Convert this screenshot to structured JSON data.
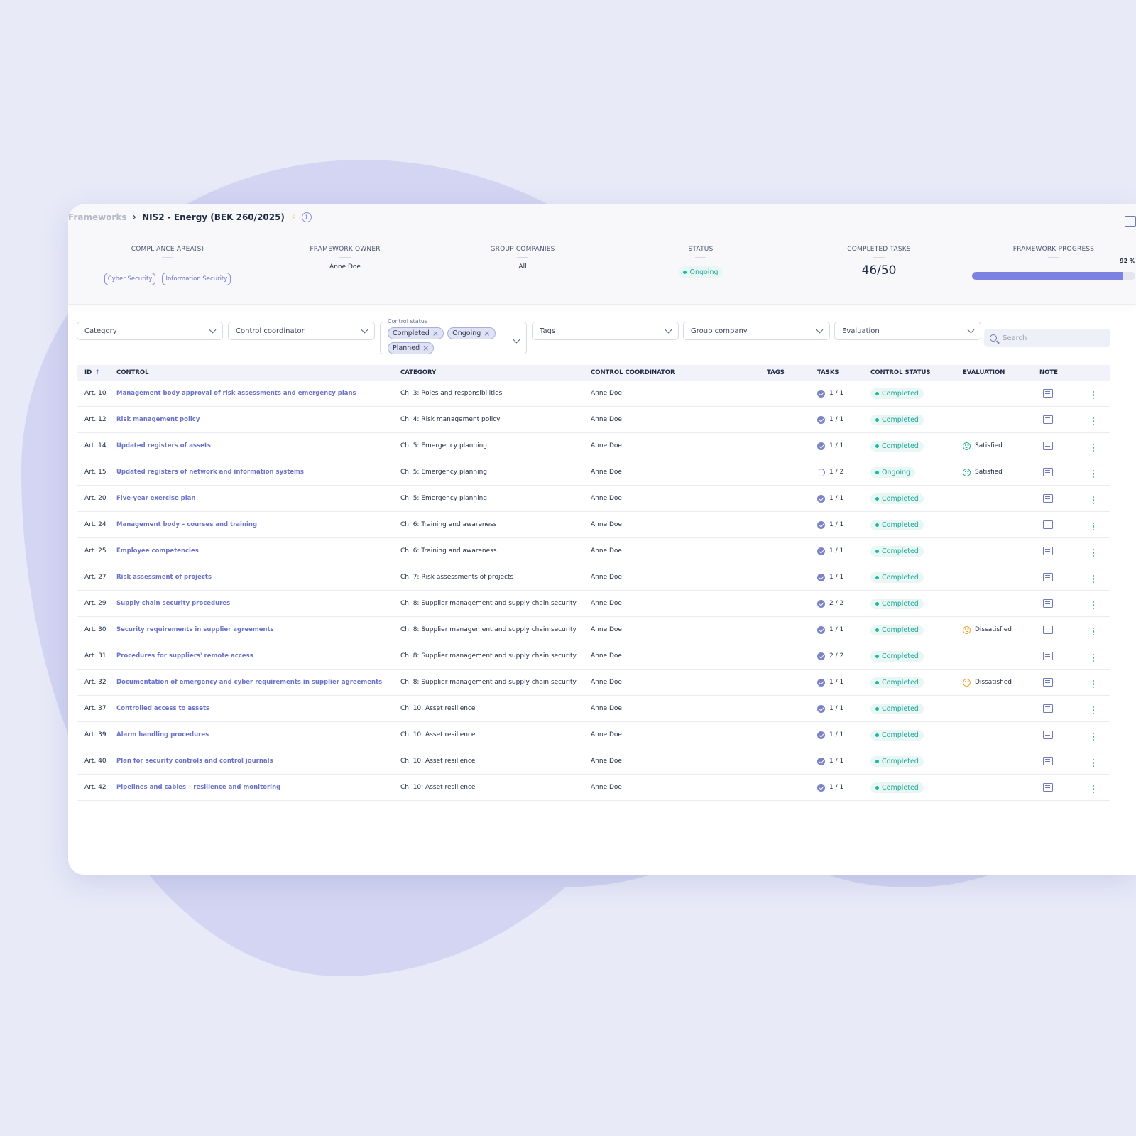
{
  "breadcrumb": {
    "root": "Frameworks",
    "separator": "›",
    "title": "NIS2 - Energy (BEK 260/2025)",
    "bolt": "⚡",
    "info": "i"
  },
  "summary": {
    "compliance_areas": {
      "label": "COMPLIANCE AREA(S)",
      "chips": [
        "Cyber Security",
        "Information Security"
      ]
    },
    "framework_owner": {
      "label": "FRAMEWORK OWNER",
      "value": "Anne Doe"
    },
    "group_companies": {
      "label": "GROUP COMPANIES",
      "value": "All"
    },
    "status": {
      "label": "STATUS",
      "value": "Ongoing"
    },
    "completed_tasks": {
      "label": "COMPLETED TASKS",
      "value": "46/50"
    },
    "framework_progress": {
      "label": "FRAMEWORK PROGRESS",
      "value": "92 %",
      "fraction": 0.92
    }
  },
  "filters": {
    "category": "Category",
    "coordinator": "Control coordinator",
    "control_status": {
      "legend": "Control status",
      "chips": [
        "Completed",
        "Ongoing",
        "Planned"
      ],
      "remove": "×"
    },
    "tags": "Tags",
    "group_company": "Group company",
    "evaluation": "Evaluation",
    "search_placeholder": "Search"
  },
  "table": {
    "headers": {
      "id": "ID",
      "sort": "↑",
      "control": "CONTROL",
      "category": "CATEGORY",
      "coordinator": "CONTROL COORDINATOR",
      "tags": "TAGS",
      "tasks": "TASKS",
      "status": "CONTROL STATUS",
      "evaluation": "EVALUATION",
      "note": "NOTE"
    },
    "rows": [
      {
        "id": "Art. 10",
        "control": "Management body approval of risk assessments and emergency plans",
        "category": "Ch. 3: Roles and responsibilities",
        "coordinator": "Anne Doe",
        "tasks": "1 / 1",
        "task_state": "done",
        "status": "Completed",
        "evaluation": ""
      },
      {
        "id": "Art. 12",
        "control": "Risk management policy",
        "category": "Ch. 4: Risk management policy",
        "coordinator": "Anne Doe",
        "tasks": "1 / 1",
        "task_state": "done",
        "status": "Completed",
        "evaluation": ""
      },
      {
        "id": "Art. 14",
        "control": "Updated registers of assets",
        "category": "Ch. 5: Emergency planning",
        "coordinator": "Anne Doe",
        "tasks": "1 / 1",
        "task_state": "done",
        "status": "Completed",
        "evaluation": "Satisfied"
      },
      {
        "id": "Art. 15",
        "control": "Updated registers of network and information systems",
        "category": "Ch. 5: Emergency planning",
        "coordinator": "Anne Doe",
        "tasks": "1 / 2",
        "task_state": "partial",
        "status": "Ongoing",
        "evaluation": "Satisfied"
      },
      {
        "id": "Art. 20",
        "control": "Five-year exercise plan",
        "category": "Ch. 5: Emergency planning",
        "coordinator": "Anne Doe",
        "tasks": "1 / 1",
        "task_state": "done",
        "status": "Completed",
        "evaluation": ""
      },
      {
        "id": "Art. 24",
        "control": "Management body – courses and training",
        "category": "Ch. 6: Training and awareness",
        "coordinator": "Anne Doe",
        "tasks": "1 / 1",
        "task_state": "done",
        "status": "Completed",
        "evaluation": ""
      },
      {
        "id": "Art. 25",
        "control": "Employee competencies",
        "category": "Ch. 6: Training and awareness",
        "coordinator": "Anne Doe",
        "tasks": "1 / 1",
        "task_state": "done",
        "status": "Completed",
        "evaluation": ""
      },
      {
        "id": "Art. 27",
        "control": "Risk assessment of projects",
        "category": "Ch. 7: Risk assessments of projects",
        "coordinator": "Anne Doe",
        "tasks": "1 / 1",
        "task_state": "done",
        "status": "Completed",
        "evaluation": ""
      },
      {
        "id": "Art. 29",
        "control": "Supply chain security procedures",
        "category": "Ch. 8: Supplier management and supply chain security",
        "coordinator": "Anne Doe",
        "tasks": "2 / 2",
        "task_state": "done",
        "status": "Completed",
        "evaluation": ""
      },
      {
        "id": "Art. 30",
        "control": "Security requirements in supplier agreements",
        "category": "Ch. 8: Supplier management and supply chain security",
        "coordinator": "Anne Doe",
        "tasks": "1 / 1",
        "task_state": "done",
        "status": "Completed",
        "evaluation": "Dissatisfied"
      },
      {
        "id": "Art. 31",
        "control": "Procedures for suppliers' remote access",
        "category": "Ch. 8: Supplier management and supply chain security",
        "coordinator": "Anne Doe",
        "tasks": "2 / 2",
        "task_state": "done",
        "status": "Completed",
        "evaluation": ""
      },
      {
        "id": "Art. 32",
        "control": "Documentation of emergency and cyber requirements in supplier agreements",
        "category": "Ch. 8: Supplier management and supply chain security",
        "coordinator": "Anne Doe",
        "tasks": "1 / 1",
        "task_state": "done",
        "status": "Completed",
        "evaluation": "Dissatisfied"
      },
      {
        "id": "Art. 37",
        "control": "Controlled access to assets",
        "category": "Ch. 10: Asset resilience",
        "coordinator": "Anne Doe",
        "tasks": "1 / 1",
        "task_state": "done",
        "status": "Completed",
        "evaluation": ""
      },
      {
        "id": "Art. 39",
        "control": "Alarm handling procedures",
        "category": "Ch. 10: Asset resilience",
        "coordinator": "Anne Doe",
        "tasks": "1 / 1",
        "task_state": "done",
        "status": "Completed",
        "evaluation": ""
      },
      {
        "id": "Art. 40",
        "control": "Plan for security controls and control journals",
        "category": "Ch. 10: Asset resilience",
        "coordinator": "Anne Doe",
        "tasks": "1 / 1",
        "task_state": "done",
        "status": "Completed",
        "evaluation": ""
      },
      {
        "id": "Art. 42",
        "control": "Pipelines and cables – resilience and monitoring",
        "category": "Ch. 10: Asset resilience",
        "coordinator": "Anne Doe",
        "tasks": "1 / 1",
        "task_state": "done",
        "status": "Completed",
        "evaluation": ""
      }
    ]
  },
  "colors": {
    "accent": "#6b73c8",
    "success": "#22a79a",
    "warning": "#f0a43a",
    "background": "#e8eaf8"
  }
}
